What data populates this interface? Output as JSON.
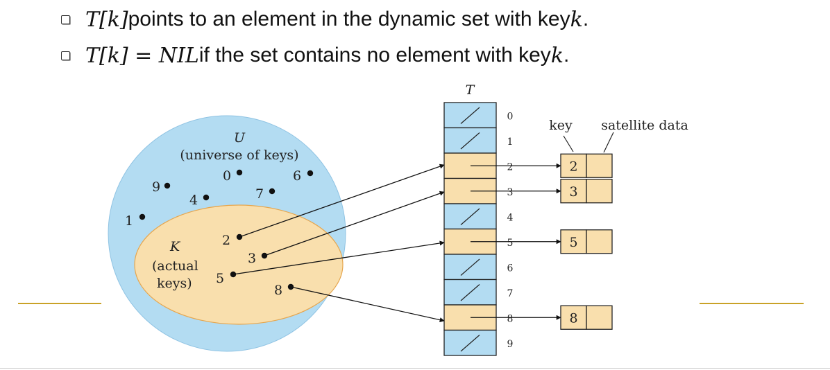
{
  "bullets": [
    {
      "math": "T[k]",
      "text": " points to an element in the dynamic set with key ",
      "tail": "k",
      "end": "."
    },
    {
      "math": "T[k]",
      "eq": " = ",
      "nil": "NIL",
      "text": " if the set contains no element with key ",
      "tail": "k",
      "end": "."
    }
  ],
  "universe": {
    "label": "U",
    "caption": "(universe of keys)",
    "keys": [
      "0",
      "6",
      "9",
      "7",
      "4",
      "1"
    ]
  },
  "actual": {
    "label": "K",
    "caption_line1": "(actual",
    "caption_line2": "keys)",
    "keys": [
      "2",
      "3",
      "5",
      "8"
    ]
  },
  "table": {
    "label": "T",
    "indices": [
      "0",
      "1",
      "2",
      "3",
      "4",
      "5",
      "6",
      "7",
      "8",
      "9"
    ],
    "occupied": [
      2,
      3,
      5,
      8
    ]
  },
  "elements": {
    "key_label": "key",
    "satellite_label": "satellite data",
    "keys": [
      "2",
      "3",
      "5",
      "8"
    ]
  },
  "colors": {
    "universe_fill": "#b3dcf2",
    "actual_fill": "#f9dfad",
    "actual_stroke": "#e6a64e",
    "slot_empty": "#b3dcf2",
    "slot_full": "#f9dfad",
    "accent_line": "#c9a227"
  }
}
